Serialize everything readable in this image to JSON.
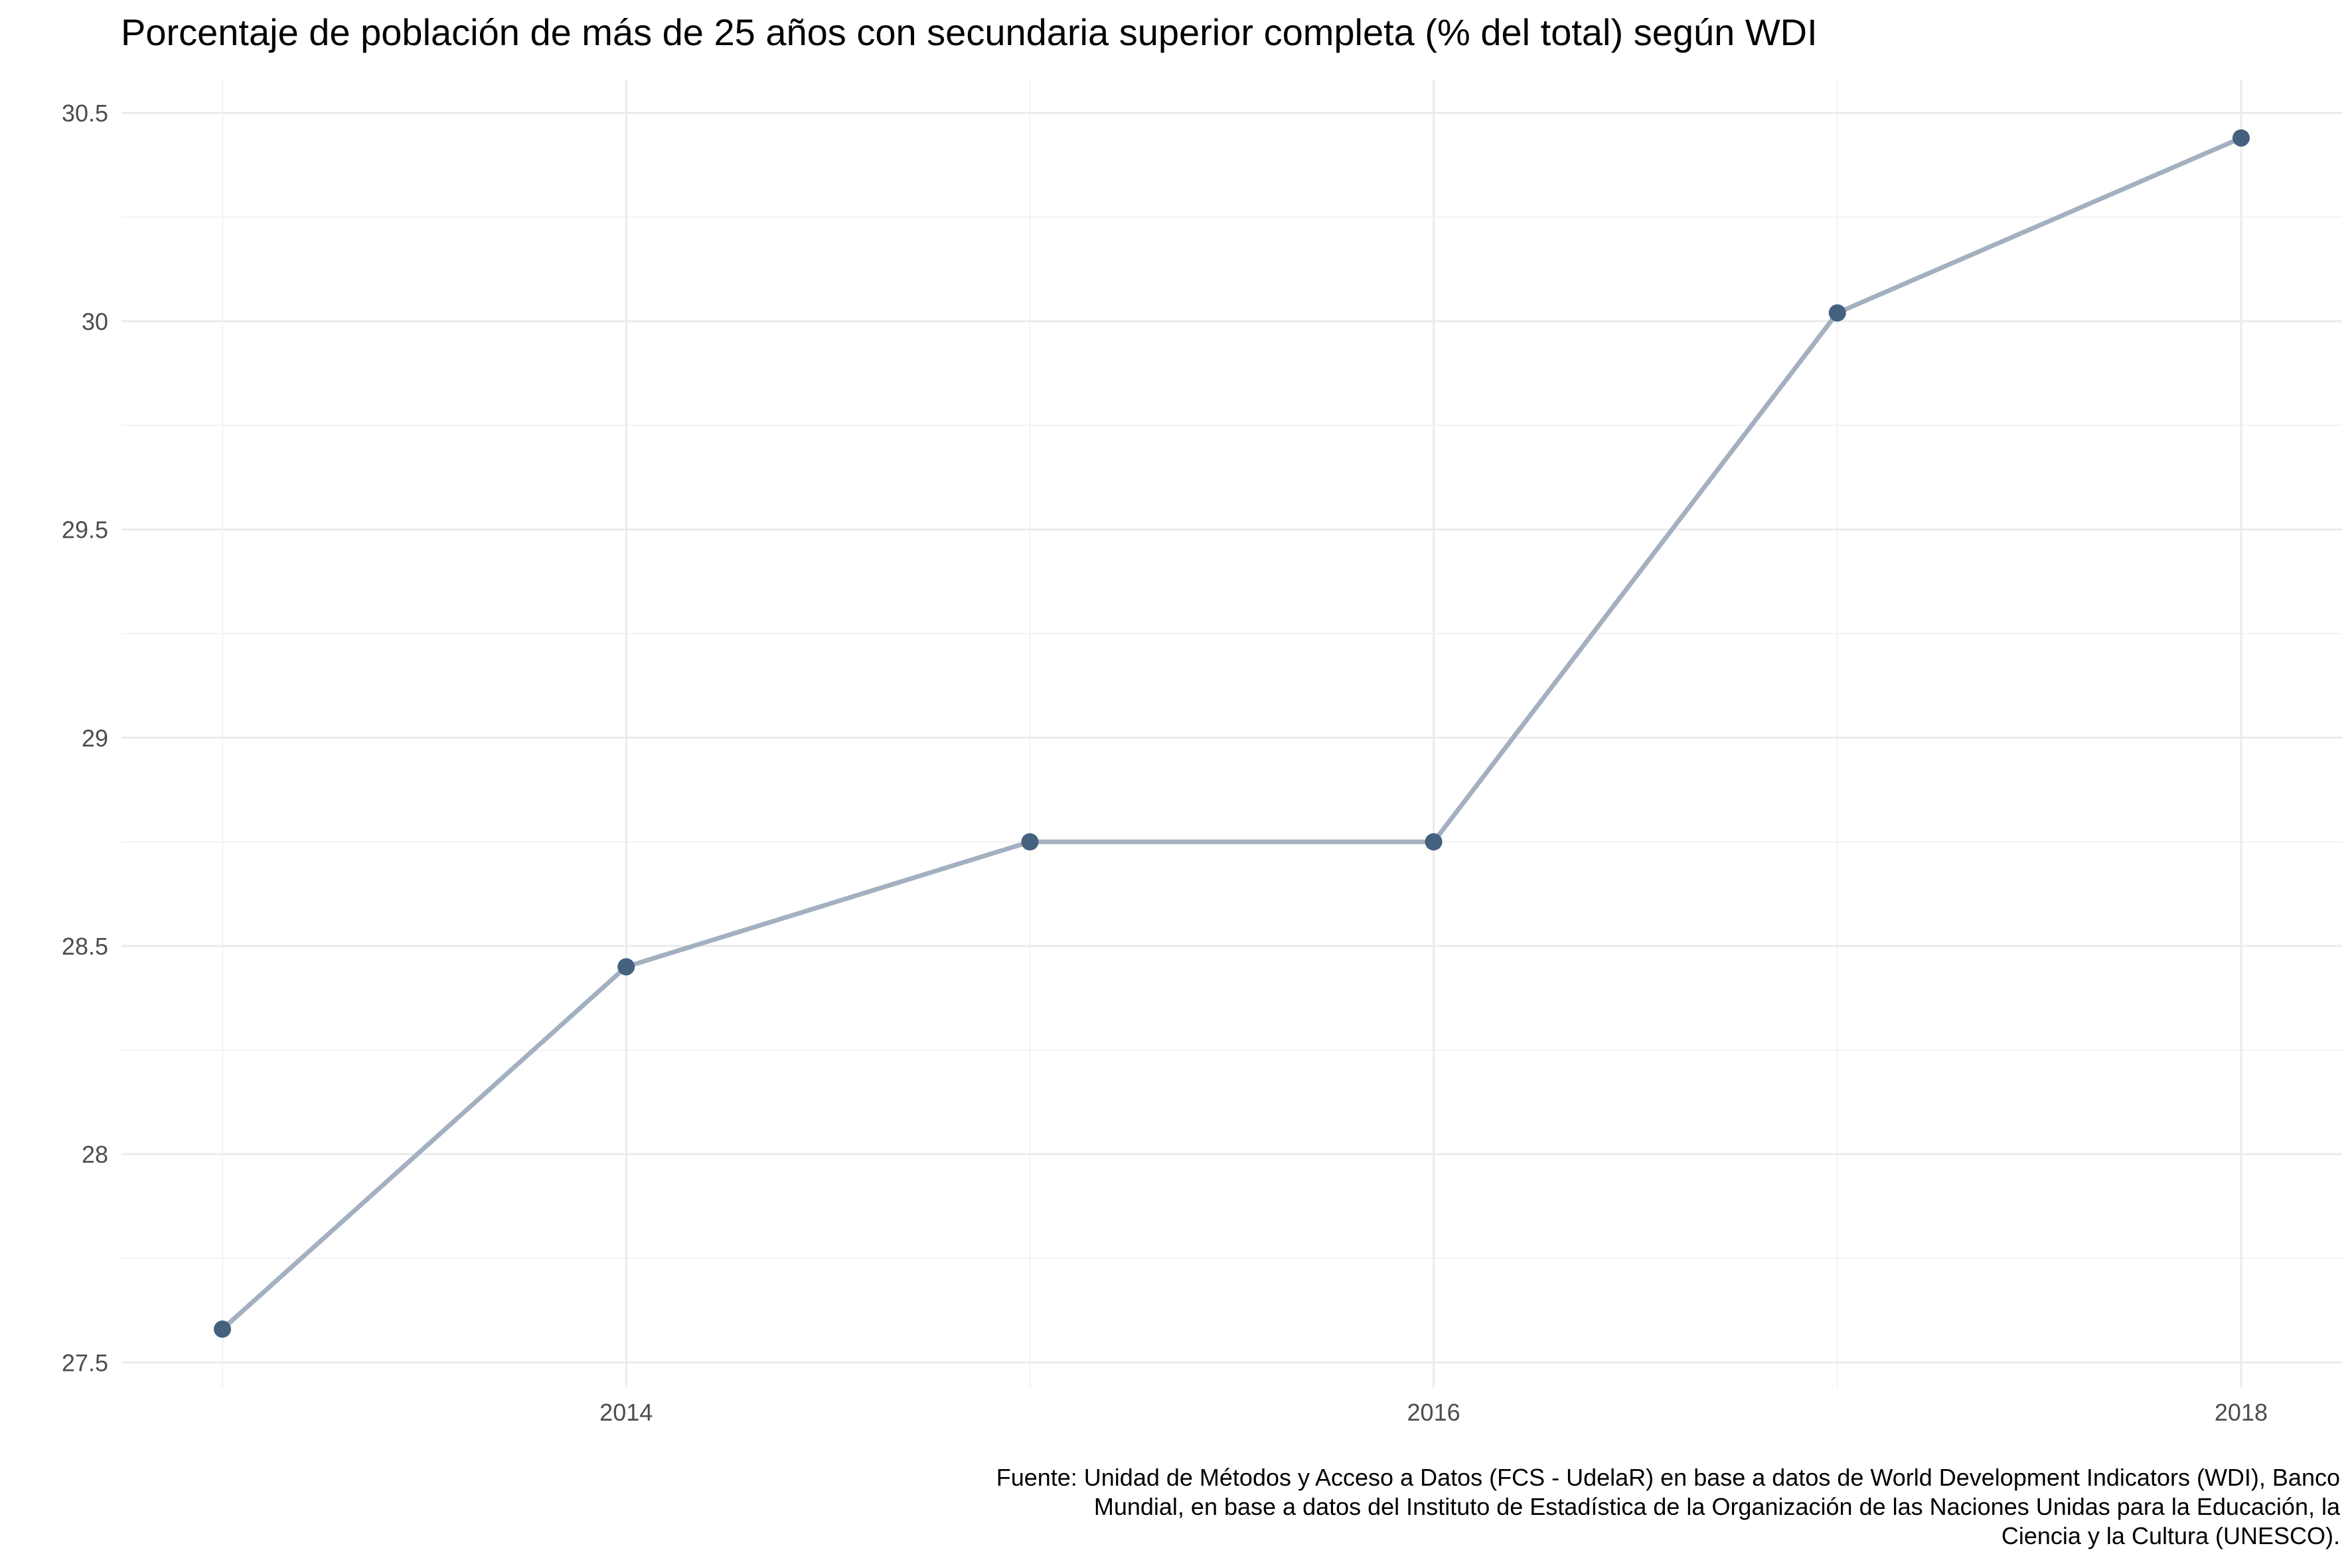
{
  "chart_data": {
    "type": "line",
    "title": "Porcentaje de población de más de 25 años con secundaria superior completa (% del total) según WDI",
    "xlabel": "",
    "ylabel": "",
    "x": [
      2013,
      2014,
      2015,
      2016,
      2017,
      2018
    ],
    "series": [
      {
        "values": [
          27.58,
          28.45,
          28.75,
          28.75,
          30.02,
          30.44
        ]
      }
    ],
    "xlim": [
      2012.75,
      2018.25
    ],
    "ylim": [
      27.44,
      30.58
    ],
    "x_ticks": [
      2014,
      2016,
      2018
    ],
    "x_tick_labels": [
      "2014",
      "2016",
      "2018"
    ],
    "y_ticks": [
      27.5,
      28,
      28.5,
      29,
      29.5,
      30,
      30.5
    ],
    "y_tick_labels": [
      "27.5",
      "28",
      "28.5",
      "29",
      "29.5",
      "30",
      "30.5"
    ],
    "grid": true,
    "line_color": "#a3b0c0",
    "point_color": "#44617f",
    "caption_lines": [
      "Fuente: Unidad de Métodos y Acceso a Datos (FCS - UdelaR) en base a datos de World Development Indicators (WDI), Banco",
      "Mundial, en base a datos del Instituto de Estadística de la Organización de las Naciones Unidas para la Educación, la",
      "Ciencia y la Cultura (UNESCO)."
    ]
  }
}
